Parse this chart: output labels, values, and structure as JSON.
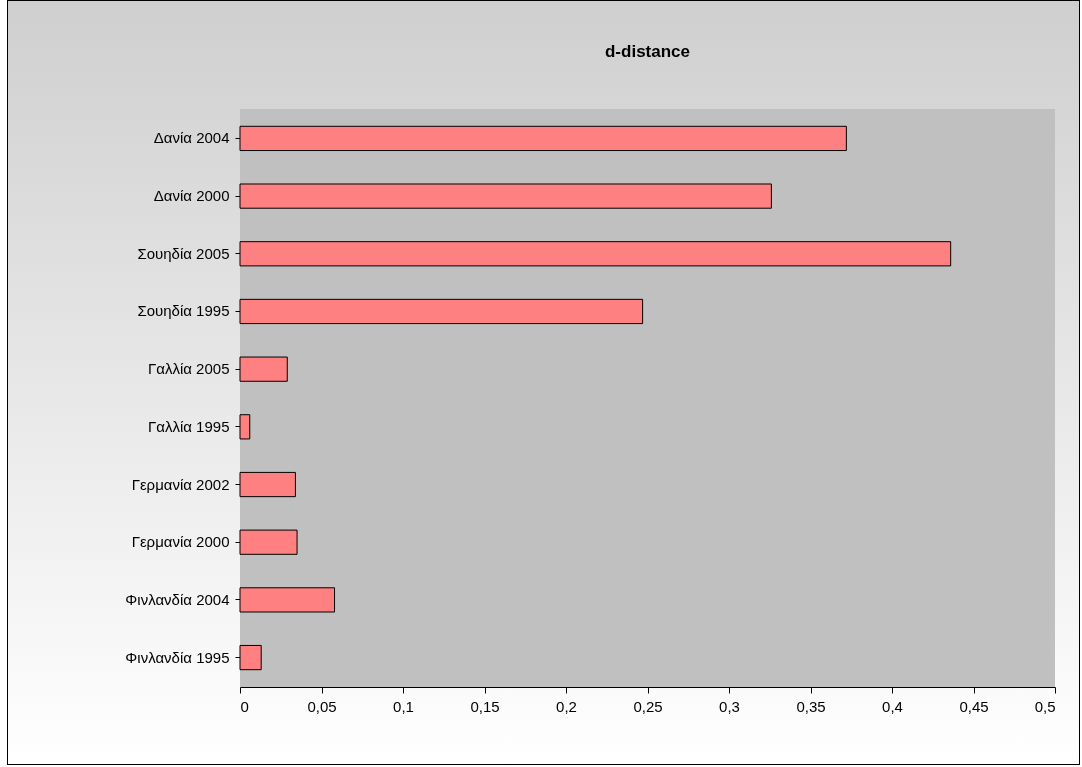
{
  "chart_data": {
    "type": "bar",
    "orientation": "horizontal",
    "title": "d-distance",
    "categories": [
      "Δανία 2004",
      "Δανία 2000",
      "Σουηδία 2005",
      "Σουηδία 1995",
      "Γαλλία 2005",
      "Γαλλία 1995",
      "Γερμανία 2002",
      "Γερμανία 2000",
      "Φινλανδία 2004",
      "Φινλανδία 1995"
    ],
    "values": [
      0.372,
      0.326,
      0.436,
      0.247,
      0.029,
      0.006,
      0.034,
      0.035,
      0.058,
      0.013
    ],
    "color": "#ff8080",
    "xlim": [
      0,
      0.5
    ],
    "xticks": [
      0,
      {
        "value": 0.05,
        "label": "0,05"
      },
      {
        "value": 0.1,
        "label": "0,1"
      },
      {
        "value": 0.15,
        "label": "0,15"
      },
      {
        "value": 0.2,
        "label": "0,2"
      },
      {
        "value": 0.25,
        "label": "0,25"
      },
      {
        "value": 0.3,
        "label": "0,3"
      },
      {
        "value": 0.35,
        "label": "0,35"
      },
      {
        "value": 0.4,
        "label": "0,4"
      },
      {
        "value": 0.45,
        "label": "0,45"
      },
      {
        "value": 0.5,
        "label": "0,5"
      }
    ],
    "grid": false
  }
}
